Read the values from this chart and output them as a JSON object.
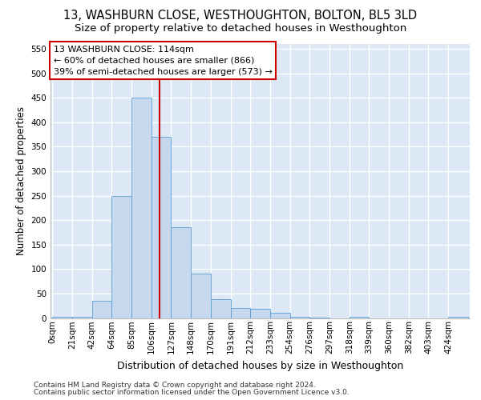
{
  "title1": "13, WASHBURN CLOSE, WESTHOUGHTON, BOLTON, BL5 3LD",
  "title2": "Size of property relative to detached houses in Westhoughton",
  "xlabel": "Distribution of detached houses by size in Westhoughton",
  "ylabel": "Number of detached properties",
  "footnote1": "Contains HM Land Registry data © Crown copyright and database right 2024.",
  "footnote2": "Contains public sector information licensed under the Open Government Licence v3.0.",
  "bin_labels": [
    "0sqm",
    "21sqm",
    "42sqm",
    "64sqm",
    "85sqm",
    "106sqm",
    "127sqm",
    "148sqm",
    "170sqm",
    "191sqm",
    "212sqm",
    "233sqm",
    "254sqm",
    "276sqm",
    "297sqm",
    "318sqm",
    "339sqm",
    "360sqm",
    "382sqm",
    "403sqm",
    "424sqm"
  ],
  "bar_values": [
    2,
    2,
    35,
    250,
    450,
    370,
    185,
    90,
    38,
    20,
    18,
    10,
    2,
    1,
    0,
    2,
    0,
    0,
    0,
    0,
    2
  ],
  "bar_color": "#c5d8ee",
  "bar_edge_color": "#5a9fd4",
  "ref_line_x": 114,
  "ref_line_color": "#cc0000",
  "annotation_line1": "13 WASHBURN CLOSE: 114sqm",
  "annotation_line2": "← 60% of detached houses are smaller (866)",
  "annotation_line3": "39% of semi-detached houses are larger (573) →",
  "annotation_box_facecolor": "#ffffff",
  "annotation_box_edgecolor": "#cc0000",
  "ylim": [
    0,
    560
  ],
  "yticks": [
    0,
    50,
    100,
    150,
    200,
    250,
    300,
    350,
    400,
    450,
    500,
    550
  ],
  "bg_color": "#dce8f5",
  "grid_color": "#ffffff",
  "title1_fontsize": 10.5,
  "title2_fontsize": 9.5,
  "xlabel_fontsize": 9,
  "ylabel_fontsize": 8.5,
  "tick_fontsize": 7.5,
  "annot_fontsize": 8,
  "footnote_fontsize": 6.5
}
